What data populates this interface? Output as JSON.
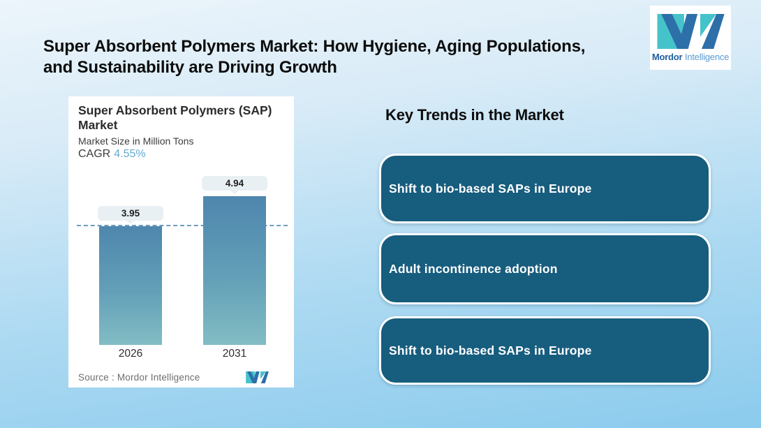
{
  "page": {
    "title_line1": "Super Absorbent Polymers Market: How Hygiene, Aging Populations,",
    "title_line2": "and Sustainability are Driving Growth"
  },
  "logo": {
    "name_bold": "Mordor",
    "name_light": "Intelligence",
    "teal": "#45c3cb",
    "blue": "#2d6fa8"
  },
  "chart_card": {
    "title": "Super Absorbent Polymers (SAP) Market",
    "subtitle": "Market Size in Million Tons",
    "cagr_label": "CAGR",
    "cagr_value": "4.55%",
    "source_label": "Source :  Mordor Intelligence"
  },
  "chart_data": {
    "type": "bar",
    "title": "Super Absorbent Polymers (SAP) Market",
    "subtitle": "Market Size in Million Tons",
    "cagr": "4.55%",
    "categories": [
      "2026",
      "2031"
    ],
    "values": [
      3.95,
      4.94
    ],
    "ylim": [
      0,
      4.94
    ],
    "reference_line": 3.95,
    "grid": false,
    "legend": false,
    "bar_gradient_top": "#4e86ad",
    "bar_gradient_bottom": "#82bcc4",
    "reference_line_color": "#6a9cc0",
    "value_label_bg": "#e9f0f3"
  },
  "key_trends": {
    "heading": "Key Trends in the Market",
    "card_color": "#175d7e",
    "items": [
      {
        "label": "Shift to bio-based SAPs in Europe"
      },
      {
        "label": "Adult incontinence adoption"
      },
      {
        "label": "Shift to bio-based SAPs in Europe"
      }
    ]
  }
}
